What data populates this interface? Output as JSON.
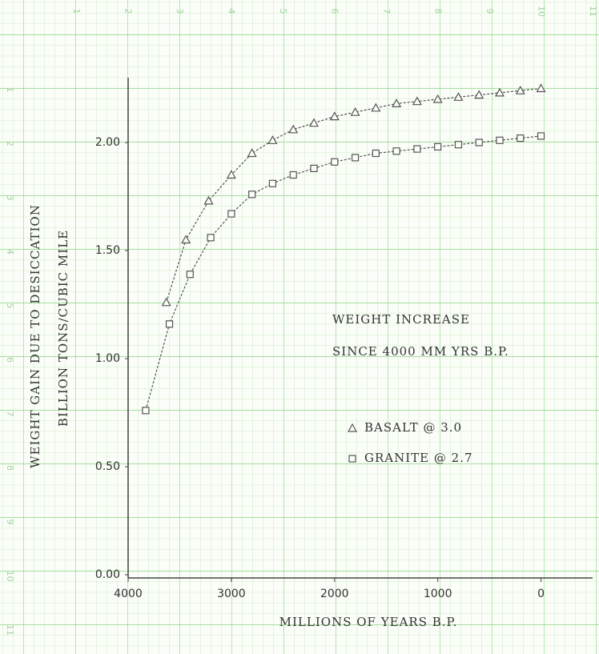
{
  "paper": {
    "top_numbers": [
      1,
      2,
      3,
      4,
      5,
      6,
      7,
      8,
      9,
      10,
      11
    ],
    "side_numbers": [
      1,
      2,
      3,
      4,
      5,
      6,
      7,
      8,
      9,
      10,
      11
    ]
  },
  "chart_data": {
    "type": "line",
    "annotations": [
      "WEIGHT INCREASE",
      "SINCE 4000 MM YRS B.P."
    ],
    "x_label": "MILLIONS OF YEARS B.P.",
    "y_label": [
      "WEIGHT GAIN DUE TO DESICCATION",
      "BILLION TONS/CUBIC MILE"
    ],
    "xlim": [
      4000,
      -500
    ],
    "xticks": [
      4000,
      3000,
      2000,
      1000,
      0
    ],
    "ylim": [
      0,
      2.3
    ],
    "yticks": [
      {
        "value": 0,
        "label": "0.00"
      },
      {
        "value": 0.5,
        "label": "0.50"
      },
      {
        "value": 1,
        "label": "1.00"
      },
      {
        "value": 1.5,
        "label": "1.50"
      },
      {
        "value": 2,
        "label": "2.00"
      }
    ],
    "series": [
      {
        "name": "BASALT @ 3.0",
        "color": "#555555",
        "marker": "triangle",
        "x": [
          3630,
          3440,
          3220,
          3000,
          2800,
          2600,
          2400,
          2200,
          2000,
          1800,
          1600,
          1400,
          1200,
          1000,
          800,
          600,
          400,
          200,
          0
        ],
        "values": [
          1.26,
          1.55,
          1.73,
          1.85,
          1.95,
          2.01,
          2.06,
          2.09,
          2.12,
          2.14,
          2.16,
          2.18,
          2.19,
          2.2,
          2.21,
          2.22,
          2.23,
          2.24,
          2.25
        ]
      },
      {
        "name": "GRANITE @ 2.7",
        "color": "#555555",
        "marker": "square",
        "x": [
          3830,
          3600,
          3400,
          3200,
          3000,
          2800,
          2600,
          2400,
          2200,
          2000,
          1800,
          1600,
          1400,
          1200,
          1000,
          800,
          600,
          400,
          200,
          0
        ],
        "values": [
          0.76,
          1.16,
          1.39,
          1.56,
          1.67,
          1.76,
          1.81,
          1.85,
          1.88,
          1.91,
          1.93,
          1.95,
          1.96,
          1.97,
          1.98,
          1.99,
          2.0,
          2.01,
          2.02,
          2.03
        ]
      }
    ]
  }
}
